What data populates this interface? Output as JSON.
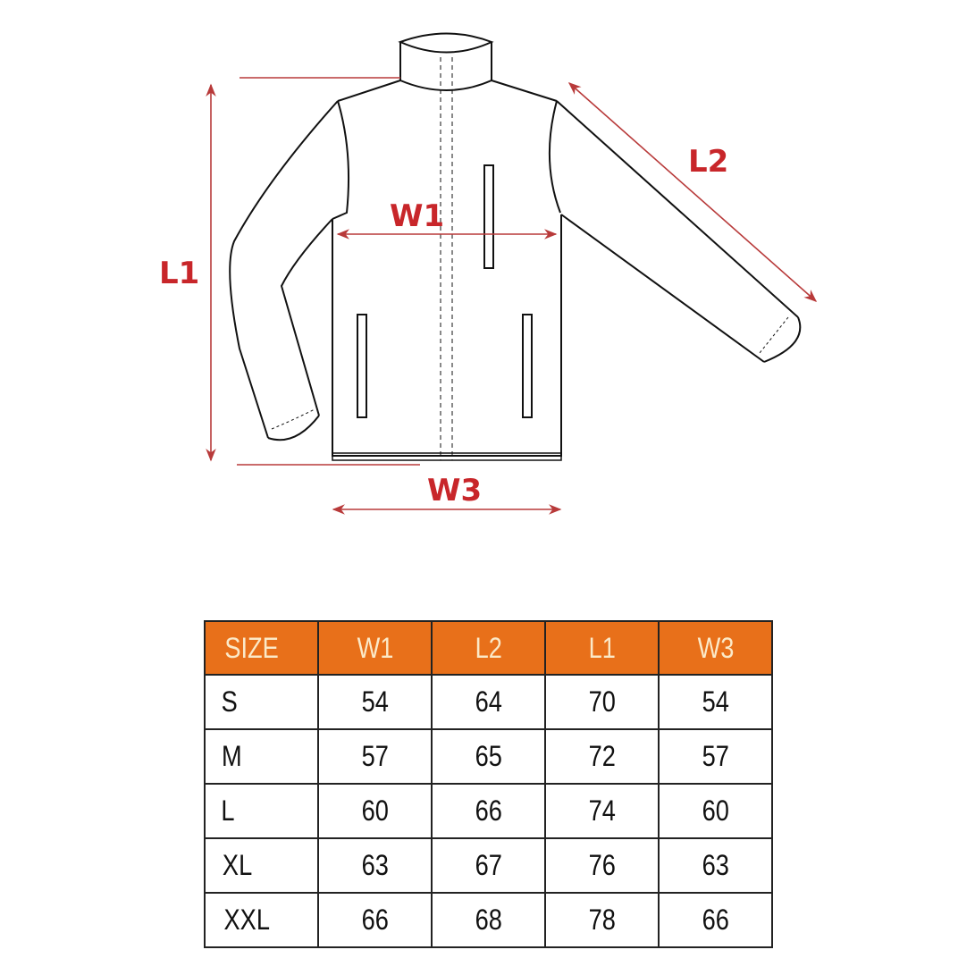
{
  "diagram": {
    "labels": {
      "l1": "L1",
      "l2": "L2",
      "w1": "W1",
      "w3": "W3"
    },
    "arrow_color": "#c8262a"
  },
  "table": {
    "header_color": "#e8701a",
    "headers": [
      "SIZE",
      "W1",
      "L2",
      "L1",
      "W3"
    ],
    "rows": [
      [
        "S",
        "54",
        "64",
        "70",
        "54"
      ],
      [
        "M",
        "57",
        "65",
        "72",
        "57"
      ],
      [
        "L",
        "60",
        "66",
        "74",
        "60"
      ],
      [
        "XL",
        "63",
        "67",
        "76",
        "63"
      ],
      [
        "XXL",
        "66",
        "68",
        "78",
        "66"
      ]
    ]
  }
}
